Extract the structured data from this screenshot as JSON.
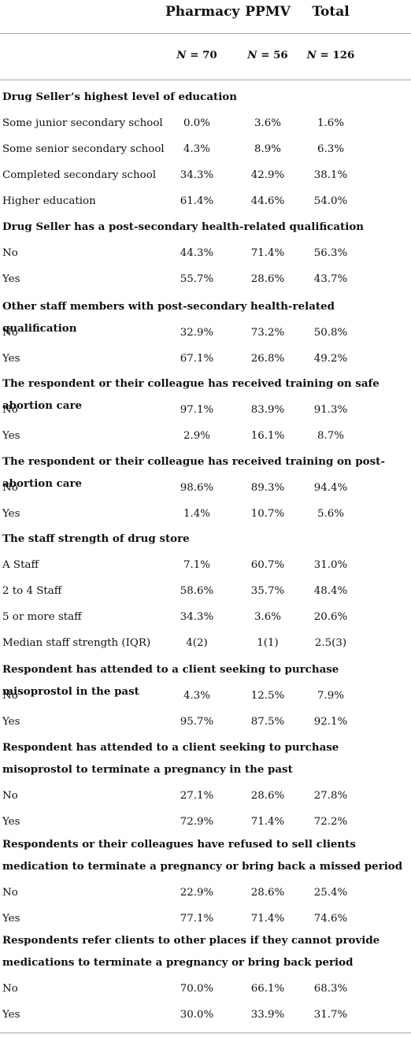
{
  "header": {
    "col1": "Pharmacy",
    "col2": "PPMV",
    "col3": "Total"
  },
  "n_row": {
    "label": "N",
    "col1": "= 70",
    "col2": "= 56",
    "col3": "= 126"
  },
  "sections": [
    {
      "title": "Drug Seller’s highest level of education",
      "rows": [
        {
          "label": "Some junior secondary school",
          "pharmacy": "0.0%",
          "ppmv": "3.6%",
          "total": "1.6%"
        },
        {
          "label": "Some senior secondary school",
          "pharmacy": "4.3%",
          "ppmv": "8.9%",
          "total": "6.3%"
        },
        {
          "label": "Completed secondary school",
          "pharmacy": "34.3%",
          "ppmv": "42.9%",
          "total": "38.1%"
        },
        {
          "label": "Higher education",
          "pharmacy": "61.4%",
          "ppmv": "44.6%",
          "total": "54.0%"
        }
      ]
    },
    {
      "title": "Drug Seller has a post-secondary health-related qualification",
      "rows": [
        {
          "label": "No",
          "pharmacy": "44.3%",
          "ppmv": "71.4%",
          "total": "56.3%"
        },
        {
          "label": "Yes",
          "pharmacy": "55.7%",
          "ppmv": "28.6%",
          "total": "43.7%"
        }
      ]
    },
    {
      "title": "Other staff members with post-secondary health-related qualification",
      "rows": [
        {
          "label": "No",
          "pharmacy": "32.9%",
          "ppmv": "73.2%",
          "total": "50.8%"
        },
        {
          "label": "Yes",
          "pharmacy": "67.1%",
          "ppmv": "26.8%",
          "total": "49.2%"
        }
      ]
    },
    {
      "title": "The respondent or their colleague has received training on safe abortion care",
      "rows": [
        {
          "label": "No",
          "pharmacy": "97.1%",
          "ppmv": "83.9%",
          "total": "91.3%"
        },
        {
          "label": "Yes",
          "pharmacy": "2.9%",
          "ppmv": "16.1%",
          "total": "8.7%"
        }
      ]
    },
    {
      "title": "The respondent or their colleague has received training on post-abortion care",
      "rows": [
        {
          "label": "No",
          "pharmacy": "98.6%",
          "ppmv": "89.3%",
          "total": "94.4%"
        },
        {
          "label": "Yes",
          "pharmacy": "1.4%",
          "ppmv": "10.7%",
          "total": "5.6%"
        }
      ]
    },
    {
      "title": "The staff strength of drug store",
      "rows": [
        {
          "label": "A Staff",
          "pharmacy": "7.1%",
          "ppmv": "60.7%",
          "total": "31.0%"
        },
        {
          "label": "2 to 4 Staff",
          "pharmacy": "58.6%",
          "ppmv": "35.7%",
          "total": "48.4%"
        },
        {
          "label": "5 or more staff",
          "pharmacy": "34.3%",
          "ppmv": "3.6%",
          "total": "20.6%"
        },
        {
          "label": "Median staff strength (IQR)",
          "pharmacy": "4(2)",
          "ppmv": "1(1)",
          "total": "2.5(3)"
        }
      ]
    },
    {
      "title": "Respondent has attended to a client seeking to purchase misoprostol in the past",
      "rows": [
        {
          "label": "No",
          "pharmacy": "4.3%",
          "ppmv": "12.5%",
          "total": "7.9%"
        },
        {
          "label": "Yes",
          "pharmacy": "95.7%",
          "ppmv": "87.5%",
          "total": "92.1%"
        }
      ]
    },
    {
      "title": "Respondent has attended to a client seeking to purchase misoprostol to terminate a pregnancy in the past",
      "rows": [
        {
          "label": "No",
          "pharmacy": "27.1%",
          "ppmv": "28.6%",
          "total": "27.8%"
        },
        {
          "label": "Yes",
          "pharmacy": "72.9%",
          "ppmv": "71.4%",
          "total": "72.2%"
        }
      ]
    },
    {
      "title": "Respondents or their colleagues have refused to sell clients medication to terminate a pregnancy or bring back a missed period",
      "rows": [
        {
          "label": "No",
          "pharmacy": "22.9%",
          "ppmv": "28.6%",
          "total": "25.4%"
        },
        {
          "label": "Yes",
          "pharmacy": "77.1%",
          "ppmv": "71.4%",
          "total": "74.6%"
        }
      ]
    },
    {
      "title": "Respondents refer clients to other places if they cannot provide medications to terminate a pregnancy or bring back period",
      "rows": [
        {
          "label": "No",
          "pharmacy": "70.0%",
          "ppmv": "66.1%",
          "total": "68.3%"
        },
        {
          "label": "Yes",
          "pharmacy": "30.0%",
          "ppmv": "33.9%",
          "total": "31.7%"
        }
      ]
    }
  ]
}
